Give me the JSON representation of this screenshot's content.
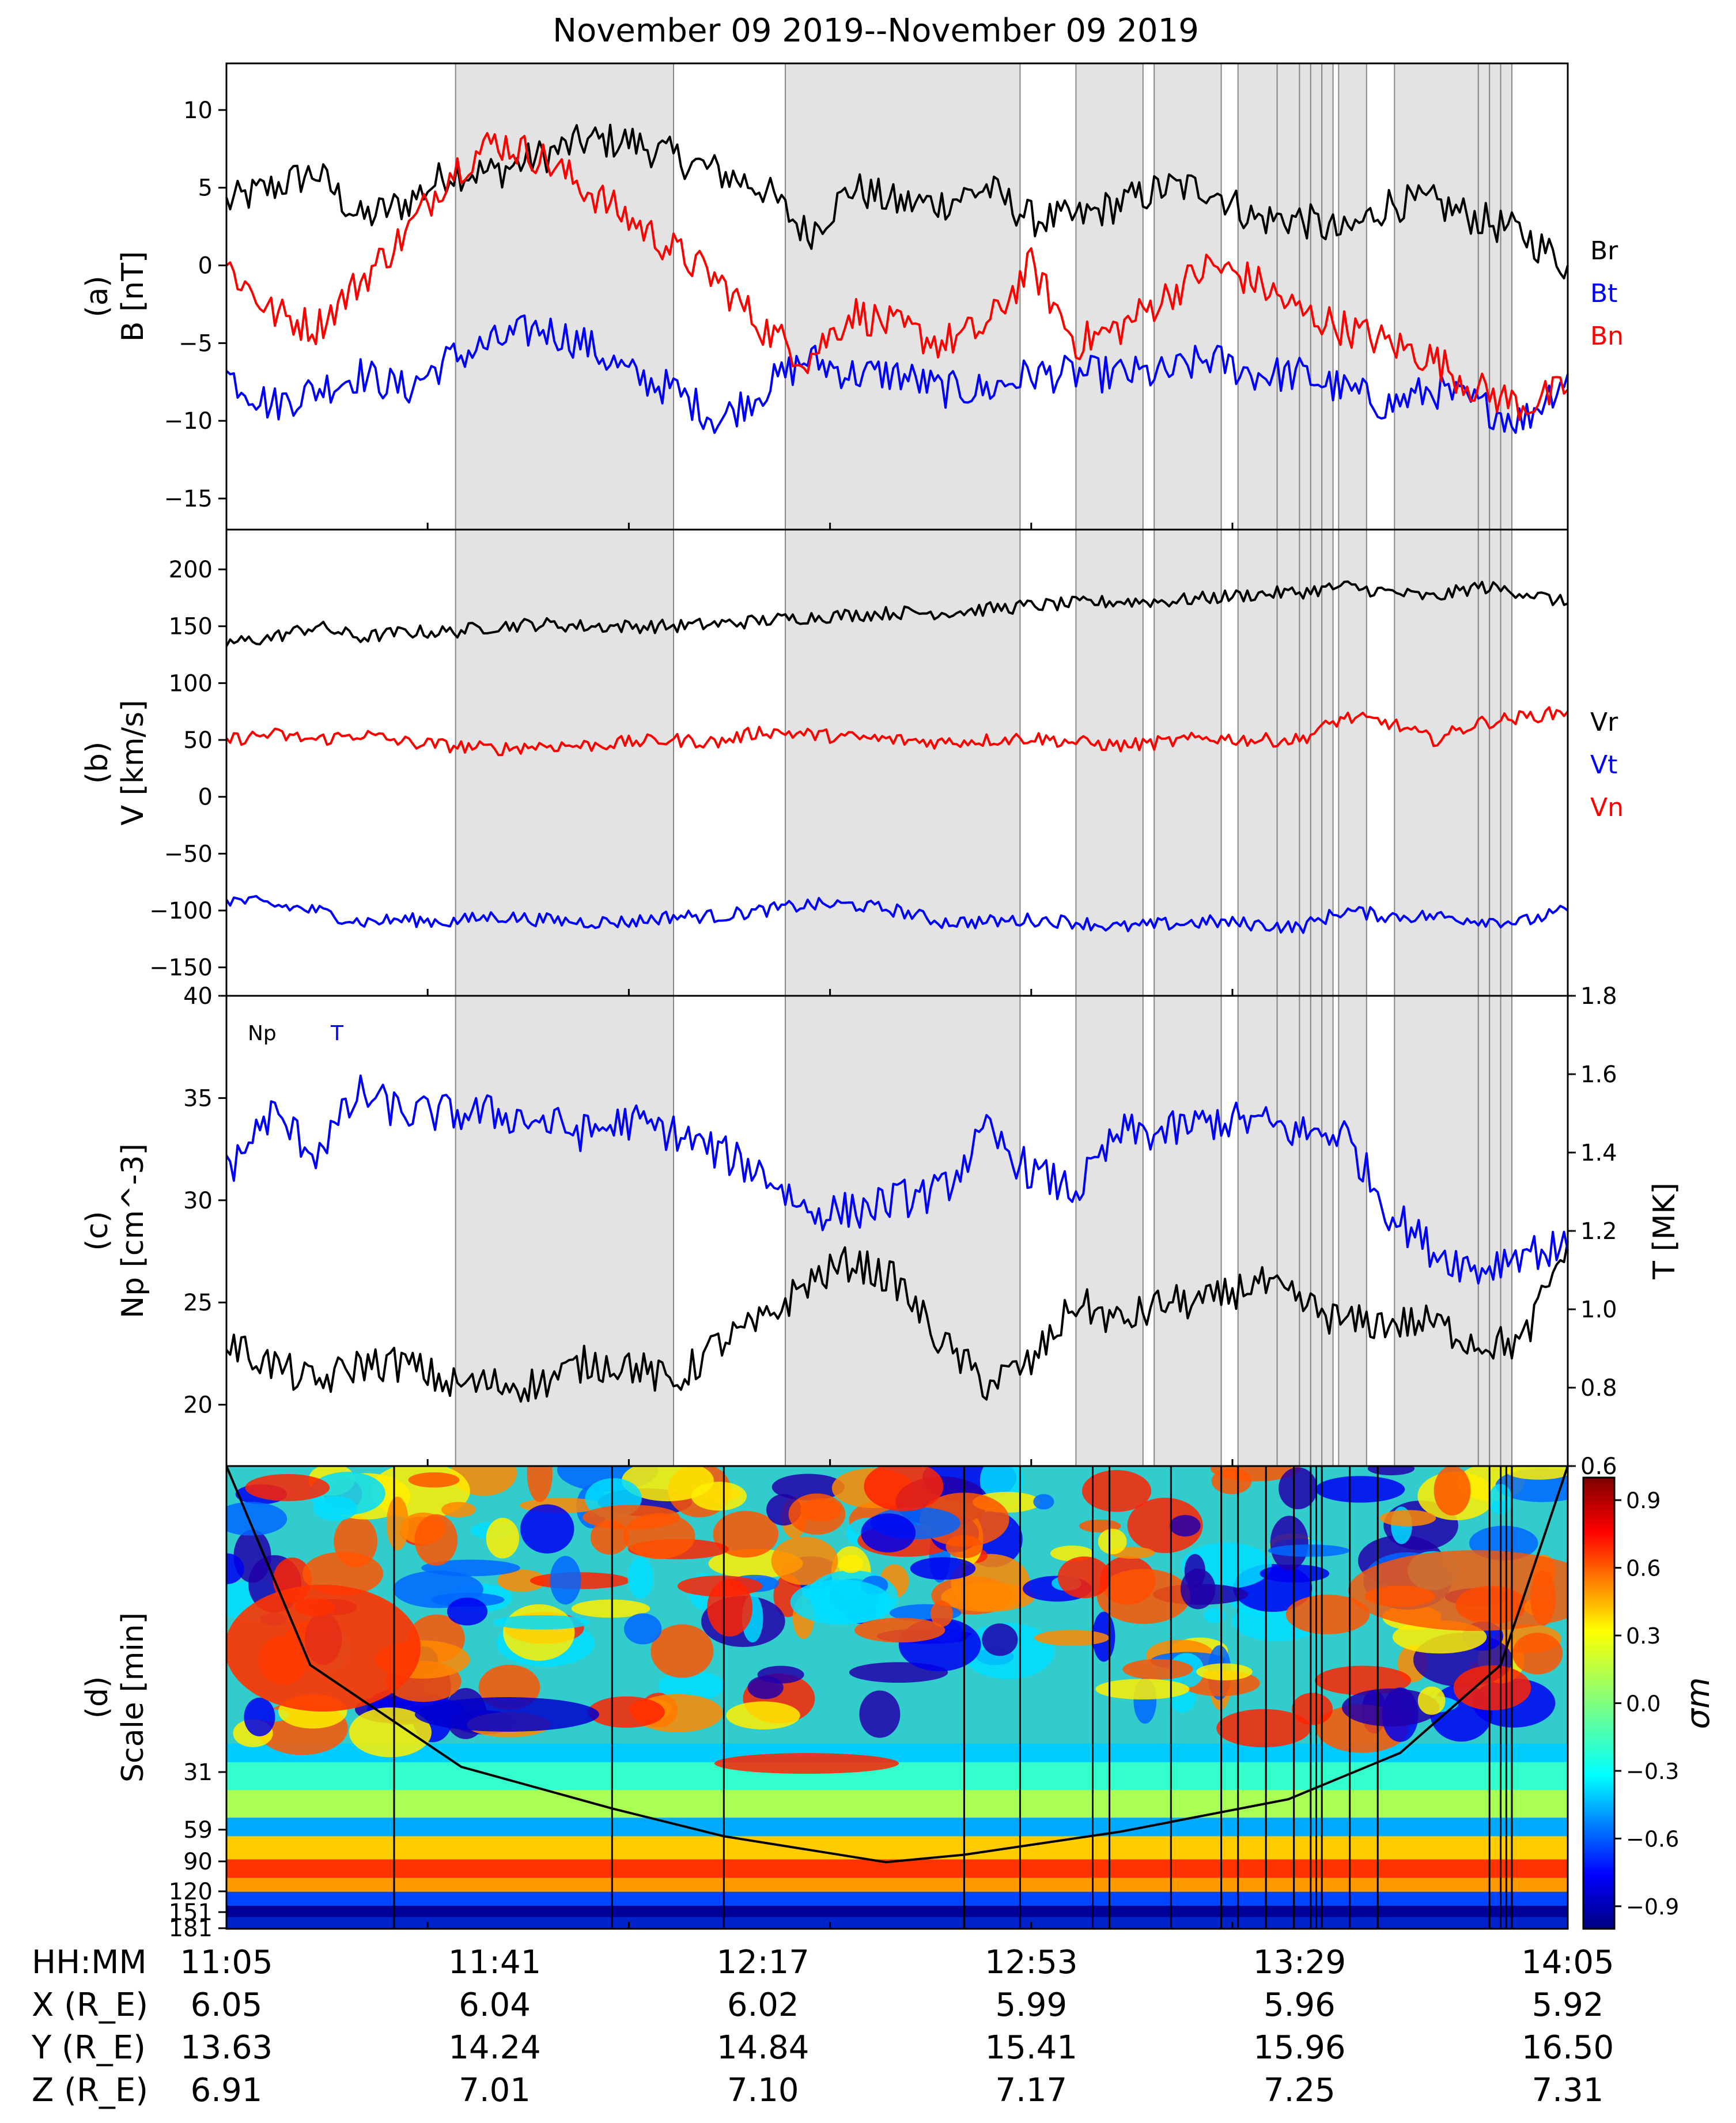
{
  "figure": {
    "title": "November 09 2019--November 09 2019"
  },
  "colors": {
    "r_component": "#000000",
    "t_component": "#0000ff",
    "n_component": "#ff0000",
    "shade": "#e3e3e3"
  },
  "shaded_intervals_min": [
    [
      41,
      80
    ],
    [
      100,
      142
    ],
    [
      152,
      164
    ],
    [
      166,
      178
    ],
    [
      181,
      188
    ],
    [
      188,
      192
    ],
    [
      192,
      194
    ],
    [
      194,
      196
    ],
    [
      196,
      198
    ],
    [
      199,
      204
    ],
    [
      209,
      224
    ],
    [
      224,
      226
    ],
    [
      226,
      228
    ],
    [
      228,
      230
    ]
  ],
  "chart_data": [
    {
      "id": "a",
      "type": "line",
      "ylabel": [
        "(a)",
        "B [nT]"
      ],
      "ylim": [
        -17,
        13
      ],
      "yticks": [
        10,
        5,
        0,
        -5,
        -10,
        -15
      ],
      "xlim": [
        0,
        240
      ],
      "legend": [
        {
          "label": "Br",
          "color": "#000000"
        },
        {
          "label": "Bt",
          "color": "#0000ff"
        },
        {
          "label": "Bn",
          "color": "#ff0000"
        }
      ],
      "series": [
        {
          "name": "Br",
          "color": "#000000",
          "x": [
            0,
            8,
            16,
            24,
            32,
            40,
            48,
            56,
            64,
            72,
            80,
            88,
            96,
            104,
            112,
            120,
            128,
            136,
            144,
            152,
            160,
            168,
            176,
            184,
            192,
            200,
            208,
            216,
            224,
            232,
            240
          ],
          "y": [
            4,
            5,
            6,
            3,
            4,
            6,
            6,
            7,
            8,
            8,
            7,
            6,
            5,
            2,
            5,
            4,
            4,
            5,
            3,
            3,
            4,
            5,
            5,
            3,
            3,
            2,
            4,
            4,
            3,
            2,
            0
          ]
        },
        {
          "name": "Bt",
          "color": "#0000ff",
          "x": [
            0,
            8,
            16,
            24,
            32,
            40,
            48,
            56,
            64,
            72,
            80,
            88,
            96,
            104,
            112,
            120,
            128,
            136,
            144,
            152,
            160,
            168,
            176,
            184,
            192,
            200,
            208,
            216,
            224,
            232,
            240
          ],
          "y": [
            -7,
            -9,
            -8,
            -7,
            -8,
            -6,
            -5,
            -4,
            -5,
            -7,
            -8,
            -10,
            -8,
            -6,
            -7,
            -7,
            -8,
            -8,
            -7,
            -7,
            -7,
            -7,
            -6,
            -7,
            -7,
            -8,
            -9,
            -8,
            -9,
            -10,
            -7
          ]
        },
        {
          "name": "Bn",
          "color": "#ff0000",
          "x": [
            0,
            8,
            16,
            24,
            32,
            40,
            48,
            56,
            64,
            72,
            80,
            88,
            96,
            104,
            112,
            120,
            128,
            136,
            144,
            152,
            160,
            168,
            176,
            184,
            192,
            200,
            208,
            216,
            224,
            232,
            240
          ],
          "y": [
            0,
            -3,
            -4,
            -1,
            2,
            6,
            8,
            7,
            5,
            3,
            1,
            -1,
            -4,
            -6,
            -3,
            -4,
            -5,
            -4,
            0,
            -5,
            -4,
            -2,
            0,
            -1,
            -3,
            -4,
            -5,
            -6,
            -8,
            -9,
            -8
          ]
        }
      ]
    },
    {
      "id": "b",
      "type": "line",
      "ylabel": [
        "(b)",
        "V [km/s]"
      ],
      "ylim": [
        -175,
        235
      ],
      "yticks": [
        200,
        150,
        100,
        50,
        0,
        -50,
        -100,
        -150
      ],
      "xlim": [
        0,
        240
      ],
      "legend": [
        {
          "label": "Vr",
          "color": "#000000"
        },
        {
          "label": "Vt",
          "color": "#0000ff"
        },
        {
          "label": "Vn",
          "color": "#ff0000"
        }
      ],
      "series": [
        {
          "name": "Vr",
          "color": "#000000",
          "x": [
            0,
            8,
            16,
            24,
            32,
            40,
            48,
            56,
            64,
            72,
            80,
            88,
            96,
            104,
            112,
            120,
            128,
            136,
            144,
            152,
            160,
            168,
            176,
            184,
            192,
            200,
            208,
            216,
            224,
            232,
            240
          ],
          "y": [
            135,
            140,
            150,
            140,
            145,
            145,
            150,
            152,
            150,
            150,
            150,
            152,
            155,
            158,
            160,
            162,
            162,
            165,
            168,
            170,
            172,
            172,
            175,
            178,
            180,
            185,
            180,
            175,
            185,
            180,
            170
          ]
        },
        {
          "name": "Vt",
          "color": "#0000ff",
          "x": [
            0,
            8,
            16,
            24,
            32,
            40,
            48,
            56,
            64,
            72,
            80,
            88,
            96,
            104,
            112,
            120,
            128,
            136,
            144,
            152,
            160,
            168,
            176,
            184,
            192,
            200,
            208,
            216,
            224,
            232,
            240
          ],
          "y": [
            -90,
            -95,
            -100,
            -110,
            -108,
            -110,
            -105,
            -108,
            -110,
            -110,
            -105,
            -105,
            -100,
            -95,
            -95,
            -100,
            -110,
            -110,
            -108,
            -110,
            -115,
            -112,
            -110,
            -112,
            -115,
            -100,
            -105,
            -105,
            -108,
            -110,
            -100
          ]
        },
        {
          "name": "Vn",
          "color": "#ff0000",
          "x": [
            0,
            8,
            16,
            24,
            32,
            40,
            48,
            56,
            64,
            72,
            80,
            88,
            96,
            104,
            112,
            120,
            128,
            136,
            144,
            152,
            160,
            168,
            176,
            184,
            192,
            200,
            208,
            216,
            224,
            232,
            240
          ],
          "y": [
            50,
            55,
            50,
            55,
            48,
            45,
            42,
            45,
            45,
            48,
            50,
            48,
            58,
            55,
            52,
            50,
            48,
            50,
            52,
            48,
            45,
            48,
            52,
            50,
            50,
            70,
            65,
            50,
            65,
            70,
            75
          ]
        }
      ]
    },
    {
      "id": "c",
      "type": "line",
      "ylabel": [
        "(c)",
        "Np [cm^-3]"
      ],
      "ylabel_right": "T [MK]",
      "ylim": [
        17,
        40
      ],
      "yticks": [
        40,
        35,
        30,
        25,
        20
      ],
      "ylim_right": [
        0.6,
        1.8
      ],
      "yticks_right": [
        1.8,
        1.6,
        1.4,
        1.2,
        1.0,
        0.8,
        0.6
      ],
      "xlim": [
        0,
        240
      ],
      "legend": [
        {
          "label": "Np",
          "color": "#000000"
        },
        {
          "label": "T",
          "color": "#0000ff"
        }
      ],
      "series": [
        {
          "name": "Np",
          "color": "#000000",
          "axis": "left",
          "x": [
            0,
            8,
            16,
            24,
            32,
            40,
            48,
            56,
            64,
            72,
            80,
            88,
            96,
            104,
            112,
            120,
            128,
            136,
            144,
            152,
            160,
            168,
            176,
            184,
            192,
            200,
            208,
            216,
            224,
            232,
            240
          ],
          "y": [
            23,
            22,
            21,
            22,
            22,
            21,
            21,
            21,
            22,
            22,
            21,
            23,
            24,
            26,
            27,
            26,
            23,
            21,
            22,
            25,
            24,
            25,
            25,
            26,
            25,
            24,
            24,
            24,
            23,
            23,
            28
          ]
        },
        {
          "name": "T",
          "color": "#0000ff",
          "axis": "right",
          "x": [
            0,
            8,
            16,
            24,
            32,
            40,
            48,
            56,
            64,
            72,
            80,
            88,
            96,
            104,
            112,
            120,
            128,
            136,
            144,
            152,
            160,
            168,
            176,
            184,
            192,
            200,
            208,
            216,
            224,
            232,
            240
          ],
          "y": [
            1.35,
            1.5,
            1.4,
            1.55,
            1.5,
            1.5,
            1.5,
            1.48,
            1.45,
            1.48,
            1.45,
            1.4,
            1.35,
            1.25,
            1.25,
            1.28,
            1.3,
            1.45,
            1.35,
            1.3,
            1.45,
            1.45,
            1.48,
            1.48,
            1.45,
            1.45,
            1.25,
            1.15,
            1.1,
            1.15,
            1.15
          ]
        }
      ]
    },
    {
      "id": "d",
      "type": "heatmap",
      "ylabel": [
        "(d)",
        "Scale [min]"
      ],
      "ytick_labels": [
        "31",
        "59",
        "90",
        "120",
        "151",
        "181"
      ],
      "xlim": [
        0,
        240
      ],
      "colorbar": {
        "label": "σm",
        "range": [
          -1,
          1
        ],
        "ticks": [
          "0.9",
          "0.6",
          "0.3",
          "0.0",
          "−0.3",
          "−0.6",
          "−0.9"
        ]
      },
      "vlines_min": [
        30,
        69,
        89,
        132,
        142,
        155,
        158,
        169,
        178,
        181,
        186,
        191,
        194,
        195,
        196,
        201,
        206,
        226,
        228,
        229,
        230
      ]
    }
  ],
  "x_axis": {
    "rows": [
      {
        "label": "HH:MM",
        "values": [
          "11:05",
          "11:41",
          "12:17",
          "12:53",
          "13:29",
          "14:05"
        ]
      },
      {
        "label": "X (R_E)",
        "values": [
          "6.05",
          "6.04",
          "6.02",
          "5.99",
          "5.96",
          "5.92"
        ]
      },
      {
        "label": "Y (R_E)",
        "values": [
          "13.63",
          "14.24",
          "14.84",
          "15.41",
          "15.96",
          "16.50"
        ]
      },
      {
        "label": "Z (R_E)",
        "values": [
          "6.91",
          "7.01",
          "7.10",
          "7.17",
          "7.25",
          "7.31"
        ]
      }
    ]
  }
}
